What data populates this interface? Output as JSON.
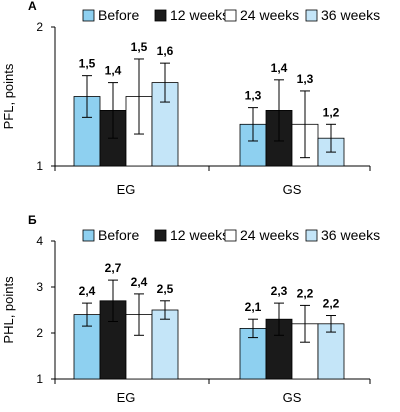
{
  "colors": {
    "Before": "#8ed0f0",
    "12 weeks": "#1a1a1a",
    "24 weeks": "#ffffff",
    "36 weeks": "#c4e5f8"
  },
  "chart_data": [
    {
      "type": "bar",
      "panel": "А",
      "categories": [
        "EG",
        "GS"
      ],
      "ylabel": "PFL, points",
      "ylim": [
        1,
        2
      ],
      "yticks": [
        "1",
        "2"
      ],
      "legend": [
        "Before",
        "12 weeks",
        "24 weeks",
        "36 weeks"
      ],
      "legend_position": "top",
      "series": [
        {
          "name": "Before",
          "values": [
            1.5,
            1.3
          ],
          "labels": [
            "1,5",
            "1,3"
          ],
          "err": [
            0.15,
            0.12
          ]
        },
        {
          "name": "12 weeks",
          "values": [
            1.4,
            1.4
          ],
          "labels": [
            "1,4",
            "1,4"
          ],
          "err": [
            0.2,
            0.22
          ]
        },
        {
          "name": "24 weeks",
          "values": [
            1.5,
            1.3
          ],
          "labels": [
            "1,5",
            "1,3"
          ],
          "err": [
            0.27,
            0.24
          ]
        },
        {
          "name": "36 weeks",
          "values": [
            1.6,
            1.2
          ],
          "labels": [
            "1,6",
            "1,2"
          ],
          "err": [
            0.14,
            0.1
          ]
        }
      ]
    },
    {
      "type": "bar",
      "panel": "Б",
      "categories": [
        "EG",
        "GS"
      ],
      "ylabel": "PHL, points",
      "ylim": [
        1,
        4
      ],
      "yticks": [
        "1",
        "2",
        "3",
        "4"
      ],
      "legend": [
        "Before",
        "12 weeks",
        "24 weeks",
        "36 weeks"
      ],
      "legend_position": "top",
      "series": [
        {
          "name": "Before",
          "values": [
            2.4,
            2.1
          ],
          "labels": [
            "2,4",
            "2,1"
          ],
          "err": [
            0.25,
            0.2
          ]
        },
        {
          "name": "12 weeks",
          "values": [
            2.7,
            2.3
          ],
          "labels": [
            "2,7",
            "2,3"
          ],
          "err": [
            0.45,
            0.35
          ]
        },
        {
          "name": "24 weeks",
          "values": [
            2.4,
            2.2
          ],
          "labels": [
            "2,4",
            "2,2"
          ],
          "err": [
            0.45,
            0.4
          ]
        },
        {
          "name": "36 weeks",
          "values": [
            2.5,
            2.2
          ],
          "labels": [
            "2,5",
            "2,2"
          ],
          "err": [
            0.2,
            0.18
          ]
        }
      ]
    }
  ]
}
